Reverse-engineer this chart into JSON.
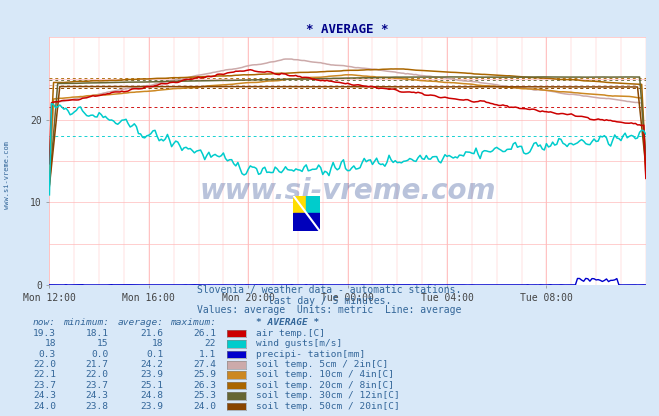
{
  "title": "* AVERAGE *",
  "background_color": "#d8e8f8",
  "plot_bg_color": "#ffffff",
  "xlim": [
    0,
    288
  ],
  "ylim": [
    0,
    30
  ],
  "yticks": [
    0,
    10,
    20
  ],
  "xtick_labels": [
    "Mon 12:00",
    "Mon 16:00",
    "Mon 20:00",
    "Tue 00:00",
    "Tue 04:00",
    "Tue 08:00"
  ],
  "xtick_positions": [
    0,
    48,
    96,
    144,
    192,
    240
  ],
  "subtitle1": "Slovenia / weather data - automatic stations.",
  "subtitle2": "last day / 5 minutes.",
  "subtitle3": "Values: average  Units: metric  Line: average",
  "watermark": "www.si-vreme.com",
  "legend_header": "* AVERAGE *",
  "legend_entries": [
    {
      "now": "19.3",
      "min": "18.1",
      "avg": "21.6",
      "max": "26.1",
      "color": "#cc0000",
      "label": "air temp.[C]"
    },
    {
      "now": "18",
      "min": "15",
      "avg": "18",
      "max": "22",
      "color": "#00cccc",
      "label": "wind gusts[m/s]"
    },
    {
      "now": "0.3",
      "min": "0.0",
      "avg": "0.1",
      "max": "1.1",
      "color": "#0000cc",
      "label": "precipi- tation[mm]"
    },
    {
      "now": "22.0",
      "min": "21.7",
      "avg": "24.2",
      "max": "27.4",
      "color": "#ccaaaa",
      "label": "soil temp. 5cm / 2in[C]"
    },
    {
      "now": "22.1",
      "min": "22.0",
      "avg": "23.9",
      "max": "25.9",
      "color": "#cc8822",
      "label": "soil temp. 10cm / 4in[C]"
    },
    {
      "now": "23.7",
      "min": "23.7",
      "avg": "25.1",
      "max": "26.3",
      "color": "#aa6600",
      "label": "soil temp. 20cm / 8in[C]"
    },
    {
      "now": "24.3",
      "min": "24.3",
      "avg": "24.8",
      "max": "25.3",
      "color": "#666633",
      "label": "soil temp. 30cm / 12in[C]"
    },
    {
      "now": "24.0",
      "min": "23.8",
      "avg": "23.9",
      "max": "24.0",
      "color": "#884400",
      "label": "soil temp. 50cm / 20in[C]"
    }
  ],
  "line_colors": {
    "air_temp": "#cc0000",
    "wind_gusts": "#00cccc",
    "precip": "#0000cc",
    "soil5": "#ccaaaa",
    "soil10": "#cc8822",
    "soil20": "#aa6600",
    "soil30": "#666633",
    "soil50": "#884400"
  },
  "avg_values": {
    "air_temp": 21.6,
    "wind_gusts": 18.0,
    "soil5": 24.2,
    "soil10": 23.9,
    "soil20": 25.1,
    "soil30": 24.8,
    "soil50": 23.9
  }
}
